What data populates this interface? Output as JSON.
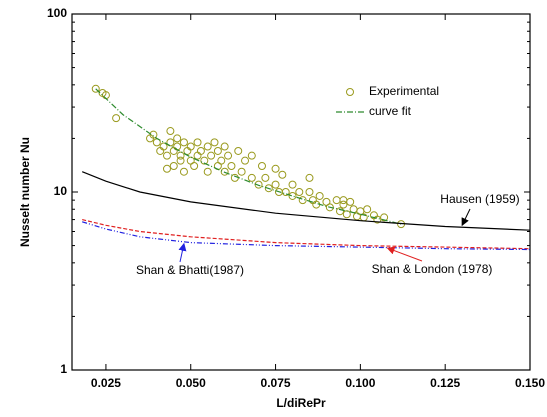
{
  "chart_data": {
    "type": "scatter",
    "x_label": "L/diRePr",
    "y_label": "Nusselt number Nu",
    "xlim": [
      0.015,
      0.15
    ],
    "ylim": [
      1,
      100
    ],
    "y_scale": "log",
    "xticks": [
      {
        "value": 0.025,
        "label": "0.025"
      },
      {
        "value": 0.05,
        "label": "0.050"
      },
      {
        "value": 0.075,
        "label": "0.075"
      },
      {
        "value": 0.1,
        "label": "0.100"
      },
      {
        "value": 0.125,
        "label": "0.125"
      },
      {
        "value": 0.15,
        "label": "0.150"
      }
    ],
    "yticks": [
      1,
      10,
      100
    ],
    "grid": false,
    "legend_position": "upper right",
    "series": [
      {
        "name": "Experimental",
        "type": "scatter",
        "color": "#9a9a1e",
        "legend": true,
        "x": [
          0.022,
          0.024,
          0.025,
          0.028,
          0.038,
          0.039,
          0.04,
          0.041,
          0.042,
          0.043,
          0.043,
          0.044,
          0.044,
          0.045,
          0.045,
          0.046,
          0.046,
          0.047,
          0.047,
          0.048,
          0.048,
          0.049,
          0.05,
          0.05,
          0.051,
          0.052,
          0.052,
          0.053,
          0.054,
          0.055,
          0.055,
          0.056,
          0.057,
          0.058,
          0.058,
          0.059,
          0.06,
          0.06,
          0.061,
          0.062,
          0.063,
          0.064,
          0.065,
          0.066,
          0.068,
          0.07,
          0.071,
          0.072,
          0.073,
          0.075,
          0.076,
          0.077,
          0.078,
          0.08,
          0.08,
          0.082,
          0.083,
          0.085,
          0.086,
          0.087,
          0.088,
          0.09,
          0.091,
          0.093,
          0.094,
          0.095,
          0.096,
          0.097,
          0.098,
          0.099,
          0.1,
          0.101,
          0.102,
          0.104,
          0.105,
          0.107,
          0.112,
          0.068,
          0.075,
          0.085,
          0.095
        ],
        "values": [
          38,
          36,
          35,
          26,
          20,
          21,
          19,
          17,
          18,
          13.5,
          16,
          22,
          19,
          17,
          14,
          20,
          18,
          16,
          15,
          19,
          13,
          17,
          15,
          18,
          14,
          16,
          19,
          17,
          15,
          18,
          13,
          16,
          19,
          14,
          17,
          15,
          18,
          13,
          16,
          14,
          12,
          17,
          13,
          15,
          12,
          11,
          14,
          12,
          10.5,
          11,
          10,
          12.5,
          10,
          11,
          9.5,
          10,
          9,
          10,
          9,
          8.5,
          9.5,
          8.8,
          8.2,
          9,
          7.8,
          8.5,
          7.5,
          8.8,
          8,
          7.3,
          7.8,
          7.2,
          8,
          7.4,
          7,
          7.2,
          6.6,
          16,
          13.5,
          12,
          9
        ]
      },
      {
        "name": "curve fit",
        "type": "line",
        "color": "#2e8b2e",
        "dash": "6 2 1 2",
        "legend": true,
        "x": [
          0.022,
          0.03,
          0.04,
          0.05,
          0.06,
          0.07,
          0.08,
          0.09,
          0.1,
          0.112
        ],
        "values": [
          38,
          27.2,
          20,
          15.7,
          12.9,
          10.9,
          9.5,
          8.3,
          7.5,
          6.6
        ]
      },
      {
        "name": "Hausen (1959)",
        "type": "line",
        "color": "#000000",
        "dash": "",
        "legend": false,
        "x": [
          0.018,
          0.025,
          0.035,
          0.05,
          0.075,
          0.1,
          0.125,
          0.15
        ],
        "values": [
          13,
          11.5,
          10,
          8.8,
          7.6,
          6.9,
          6.4,
          6.1
        ]
      },
      {
        "name": "Shan & London (1978)",
        "type": "line",
        "color": "#e02020",
        "dash": "4 2",
        "legend": false,
        "x": [
          0.018,
          0.025,
          0.035,
          0.05,
          0.075,
          0.1,
          0.125,
          0.15
        ],
        "values": [
          7,
          6.5,
          6,
          5.6,
          5.2,
          5,
          4.9,
          4.8
        ]
      },
      {
        "name": "Shan & Bhatti(1987)",
        "type": "line",
        "color": "#2020e0",
        "dash": "5 2 1 2 1 2",
        "legend": false,
        "x": [
          0.018,
          0.025,
          0.035,
          0.05,
          0.075,
          0.1,
          0.125,
          0.15
        ],
        "values": [
          6.8,
          6.2,
          5.6,
          5.2,
          5,
          4.9,
          4.8,
          4.75
        ]
      }
    ]
  }
}
